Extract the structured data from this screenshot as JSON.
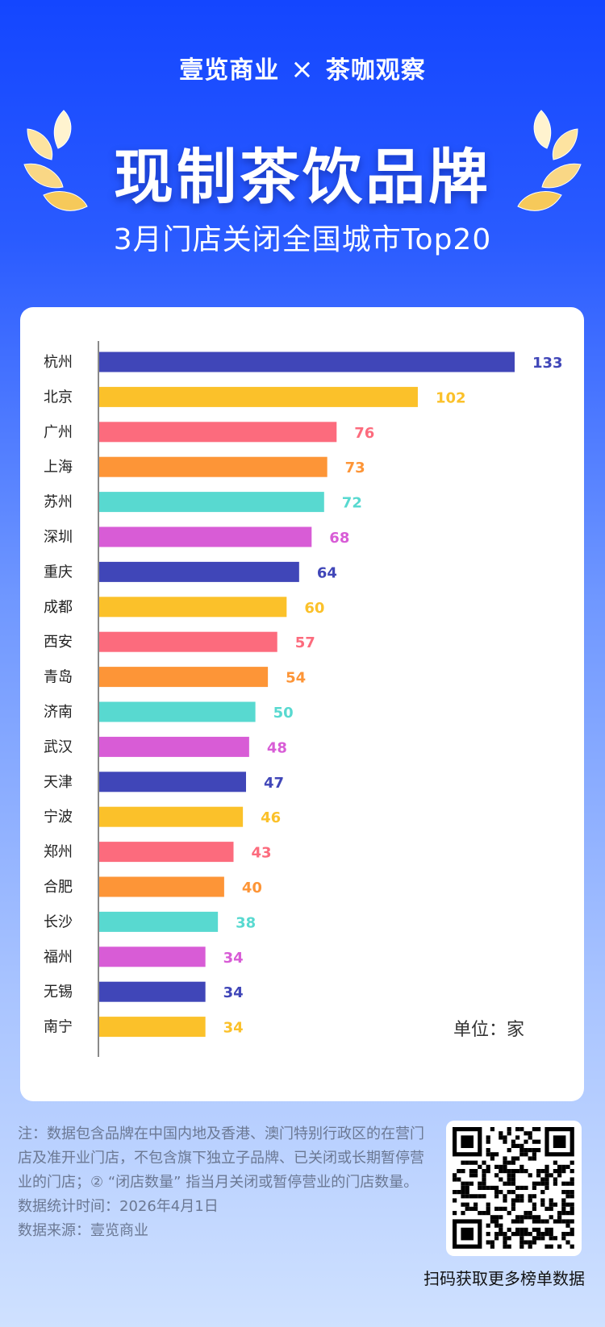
{
  "header": {
    "brand_left": "壹览商业",
    "brand_sep": "×",
    "brand_right": "茶咖观察",
    "title": "现制茶饮品牌",
    "subtitle": "3月门店关闭全国城市Top20"
  },
  "chart_data": {
    "type": "bar",
    "orientation": "horizontal",
    "title": "3月门店关闭全国城市Top20",
    "unit_label": "单位：家",
    "categories": [
      "杭州",
      "北京",
      "广州",
      "上海",
      "苏州",
      "深圳",
      "重庆",
      "成都",
      "西安",
      "青岛",
      "济南",
      "武汉",
      "天津",
      "宁波",
      "郑州",
      "合肥",
      "长沙",
      "福州",
      "无锡",
      "南宁"
    ],
    "values": [
      133,
      102,
      76,
      73,
      72,
      68,
      64,
      60,
      57,
      54,
      50,
      48,
      47,
      46,
      43,
      40,
      38,
      34,
      34,
      34
    ],
    "colors": [
      "#4046b8",
      "#fbc12a",
      "#fc6b7d",
      "#fd9537",
      "#58d9d0",
      "#d85cd6",
      "#4046b8",
      "#fbc12a",
      "#fc6b7d",
      "#fd9537",
      "#58d9d0",
      "#d85cd6",
      "#4046b8",
      "#fbc12a",
      "#fc6b7d",
      "#fd9537",
      "#58d9d0",
      "#d85cd6",
      "#4046b8",
      "#fbc12a"
    ],
    "xlim": [
      0,
      133
    ],
    "grid": false,
    "legend": "none"
  },
  "notes": {
    "line1": "注：数据包含品牌在中国内地及香港、澳门特别行政区的在营门店及准开业门店，不包含旗下独立子品牌、已关闭或长期暂停营业的门店；② “闭店数量” 指当月关闭或暂停营业的门店数量。",
    "stat_time": "数据统计时间：2026年4月1日",
    "source": "数据来源：壹览商业"
  },
  "qr": {
    "caption": "扫码获取更多榜单数据"
  }
}
